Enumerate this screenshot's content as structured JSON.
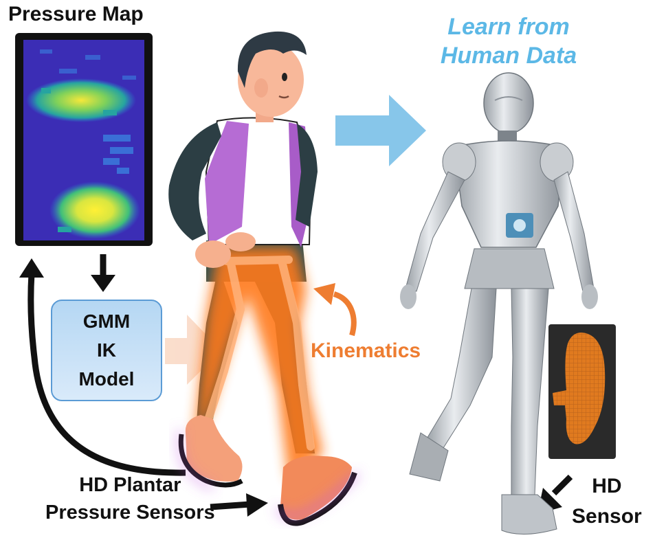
{
  "labels": {
    "pressure_map_title": "Pressure Map",
    "learn_line1": "Learn from",
    "learn_line2": "Human Data",
    "gmm_line1": "GMM",
    "gmm_line2": "IK",
    "gmm_line3": "Model",
    "kinematics": "Kinematics",
    "hd_plantar_line1": "HD Plantar",
    "hd_plantar_line2": "Pressure Sensors",
    "hd_sensor_line1": "HD",
    "hd_sensor_line2": "Sensor"
  },
  "colors": {
    "learn_text": "#5cb8e6",
    "kinematics_text": "#ee7d31",
    "flow_arrow": "#87c6ea",
    "orange_glow": "#ff7a1a",
    "box_border": "#5b9bd5",
    "heatmap_background": "#3b2db5"
  }
}
